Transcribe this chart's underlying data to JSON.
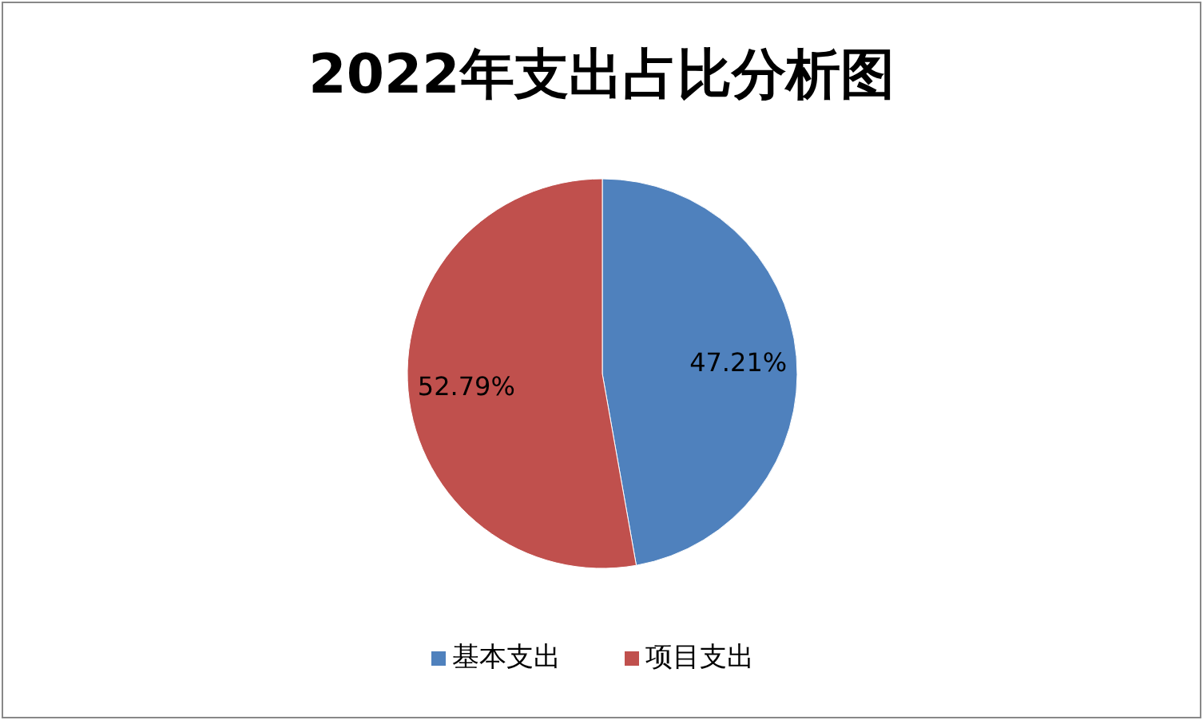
{
  "chart_data": {
    "type": "pie",
    "title": "2022年支出占比分析图",
    "categories": [
      "基本支出",
      "项目支出"
    ],
    "values": [
      47.21,
      52.79
    ],
    "colors": [
      "#4f81bd",
      "#c0504d"
    ],
    "value_labels": [
      "47.21%",
      "52.79%"
    ],
    "legend": "bottom"
  }
}
